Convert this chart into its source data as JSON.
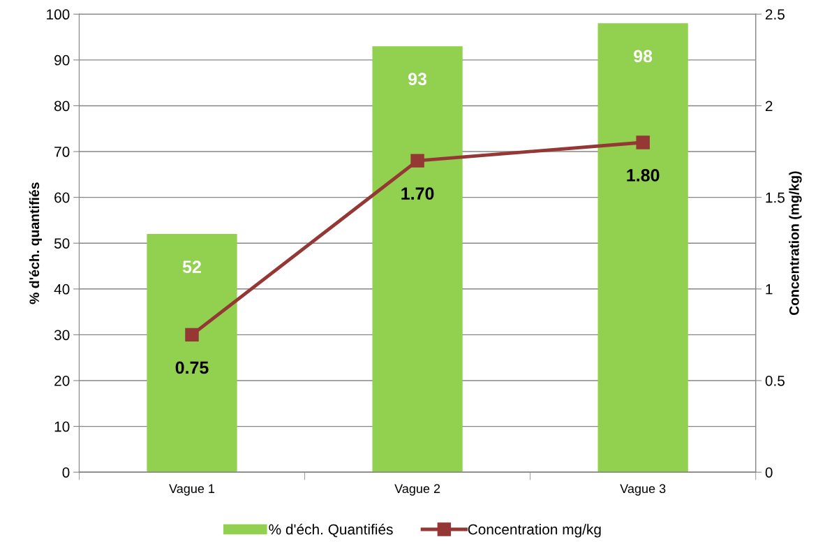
{
  "chart_data": {
    "type": "bar",
    "categories": [
      "Vague 1",
      "Vague 2",
      "Vague 3"
    ],
    "ylabel": "% d'éch. quantifiés",
    "y2label": "Concentration (mg/kg)",
    "ylim": [
      0,
      100
    ],
    "yticks": [
      0,
      10,
      20,
      30,
      40,
      50,
      60,
      70,
      80,
      90,
      100
    ],
    "y2lim": [
      0,
      2.5
    ],
    "y2ticks": [
      0,
      {
        "value": 0.5,
        "label": "0.5"
      },
      1,
      {
        "value": 1.5,
        "label": "1.5"
      },
      2,
      {
        "value": 2.5,
        "label": "2.5"
      }
    ],
    "grid": "y",
    "legend": "bottom",
    "series": [
      {
        "name": "% d'éch. Quantifiés",
        "color": "#92d050",
        "values": [
          52,
          93,
          98
        ],
        "value_labels": [
          "52",
          "93",
          "98"
        ]
      },
      {
        "name": "Concentration mg/kg",
        "type": "line",
        "axis": "y2",
        "color": "#953735",
        "marker": "square",
        "line_style": "solid",
        "values": [
          0.75,
          1.7,
          1.8
        ],
        "value_labels": [
          "0.75",
          "1.70",
          "1.80"
        ]
      }
    ]
  }
}
